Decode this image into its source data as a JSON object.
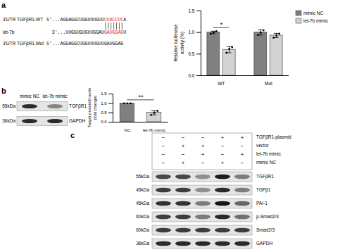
{
  "panel_labels": [
    "a",
    "b",
    "c"
  ],
  "chart_data": [
    {
      "type": "bar",
      "y_label": "Relative luciferase activity (%)",
      "categories": [
        "WT",
        "Mut"
      ],
      "series": [
        {
          "name": "mimic NC",
          "color": "#808080",
          "values": [
            1.0,
            1.0
          ],
          "errors": [
            0.03,
            0.06
          ],
          "points": [
            [
              0.97,
              1.0,
              1.03
            ],
            [
              0.94,
              1.0,
              1.05
            ]
          ]
        },
        {
          "name": "let-7b mimic",
          "color": "#d3d3d3",
          "values": [
            0.6,
            0.93
          ],
          "errors": [
            0.07,
            0.05
          ],
          "points": [
            [
              0.53,
              0.62,
              0.66
            ],
            [
              0.88,
              0.93,
              0.97
            ]
          ]
        }
      ],
      "ylim": [
        0,
        1.5
      ],
      "yticks": [
        {
          "value": 0,
          "label": "0.0"
        },
        {
          "value": 0.5,
          "label": "0.5"
        },
        {
          "value": 1,
          "label": "1.0"
        },
        {
          "value": 1.5,
          "label": "1.5"
        }
      ],
      "legend": "top-right",
      "annotations": [
        {
          "text": "*",
          "category": "WT"
        }
      ]
    },
    {
      "type": "bar",
      "y_label": "Target protein/β-actin (fold change)",
      "categories": [
        "NC",
        "let-7b mimic"
      ],
      "values": [
        1.0,
        0.5
      ],
      "colors": [
        "#808080",
        "#d3d3d3"
      ],
      "errors": [
        0,
        0.11
      ],
      "points": [
        [
          1.0,
          1.0,
          1.0
        ],
        [
          0.38,
          0.5,
          0.6
        ]
      ],
      "ylim": [
        0,
        1.5
      ],
      "yticks": [
        {
          "value": 0,
          "label": "0.0"
        },
        {
          "value": 0.5,
          "label": "0.5"
        },
        {
          "value": 1,
          "label": "1.0"
        },
        {
          "value": 1.5,
          "label": "1.5"
        }
      ],
      "annotations": [
        {
          "text": "**"
        }
      ]
    }
  ],
  "sequences": [
    {
      "name": "3'UTR TGFβR1-WT",
      "prefix": "5'...AGGAGGCUGGUUUGUU",
      "highlight": "CUACCUC",
      "suffix": "A"
    },
    {
      "name": "let-7b",
      "prefix": "3'...UUGGUGUGUUGGAU",
      "highlight": "GAUGGAG",
      "suffix": "U"
    },
    {
      "name": "3'UTR TGFβR1-Mut",
      "sequence": "5'...AGGAGGCUGGUUUGUUGAUGGAG"
    }
  ],
  "blot_b": {
    "columns": [
      "mimic NC",
      "let-7b mimic"
    ],
    "rows": [
      {
        "size": "55kDa",
        "protein": "TGFβR1",
        "bands": [
          0.9,
          0.45
        ]
      },
      {
        "size": "36kDa",
        "protein": "GAPDH",
        "bands": [
          0.9,
          0.9
        ]
      }
    ]
  },
  "blot_c": {
    "conditions": [
      {
        "name": "TGFβR1-plasmid",
        "signs": [
          "−",
          "−",
          "−",
          "+",
          "+"
        ]
      },
      {
        "name": "vector",
        "signs": [
          "−",
          "+",
          "+",
          "−",
          "−"
        ]
      },
      {
        "name": "let-7b mimic",
        "signs": [
          "−",
          "−",
          "+",
          "−",
          "+"
        ]
      },
      {
        "name": "mimic NC",
        "signs": [
          "−",
          "+",
          "−",
          "+",
          "−"
        ]
      }
    ],
    "rows": [
      {
        "size": "55kDa",
        "protein": "TGFβR1",
        "bands": [
          0.75,
          0.75,
          0.4,
          0.95,
          0.5
        ]
      },
      {
        "size": "45kDa",
        "protein": "TGFβ1",
        "bands": [
          0.8,
          0.8,
          0.4,
          0.9,
          0.5
        ]
      },
      {
        "size": "45kDa",
        "protein": "PAI-1",
        "bands": [
          0.85,
          0.85,
          0.5,
          1.0,
          0.6
        ]
      },
      {
        "size": "60kDa",
        "protein": "p-Smad2/3",
        "bands": [
          0.8,
          0.8,
          0.5,
          0.9,
          0.55
        ]
      },
      {
        "size": "60kDa",
        "protein": "Smad2/3",
        "bands": [
          0.8,
          0.8,
          0.8,
          0.8,
          0.8
        ]
      },
      {
        "size": "36kDa",
        "protein": "GAPDH",
        "bands": [
          0.9,
          0.9,
          0.9,
          0.9,
          0.9
        ]
      }
    ]
  }
}
